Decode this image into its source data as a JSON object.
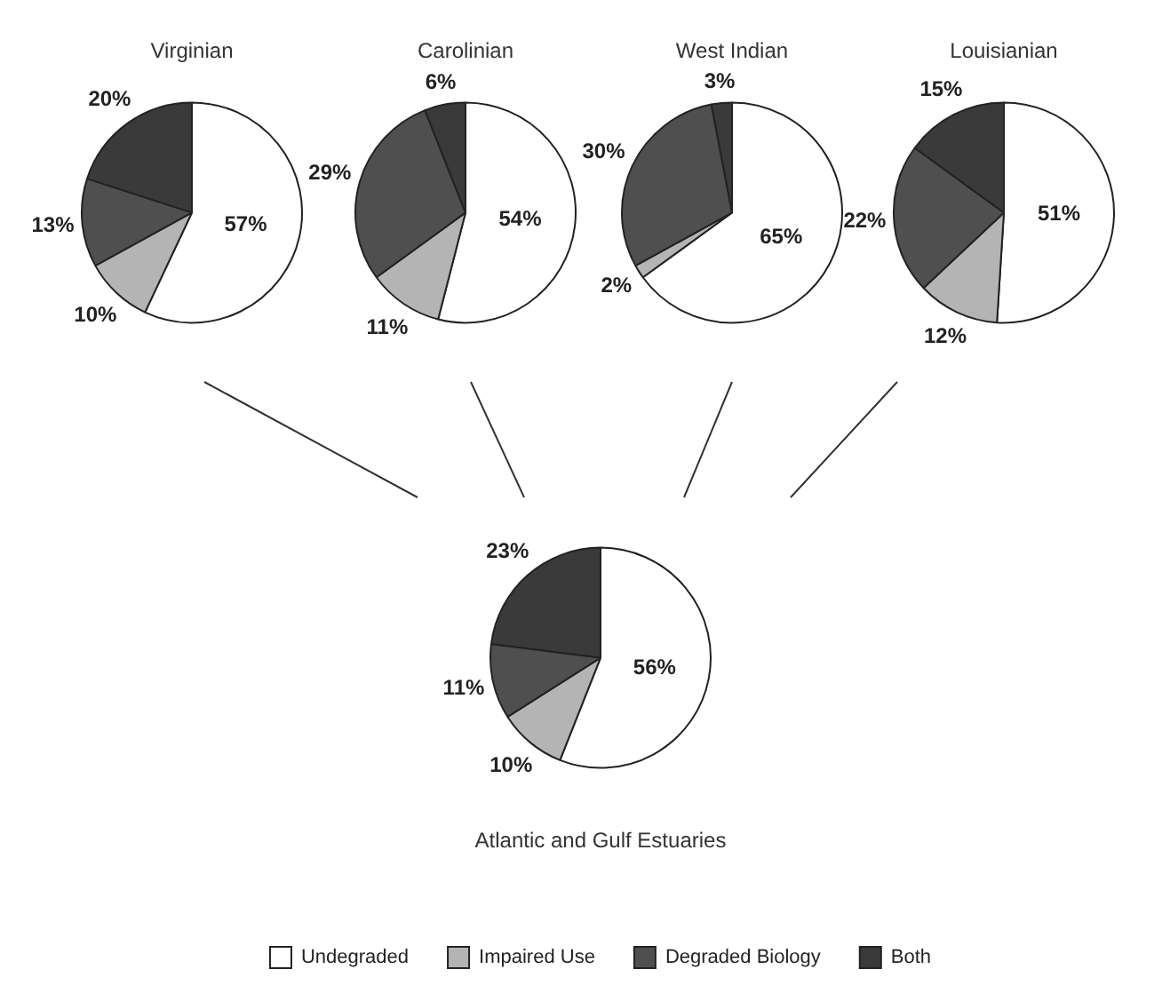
{
  "chart_data": [
    {
      "type": "pie",
      "title": "Virginian",
      "categories": [
        null,
        null,
        null,
        null
      ],
      "values": [
        57,
        10,
        13,
        20
      ],
      "colors": [
        "#ffffff",
        "#b4b4b4",
        "#4f4f4f",
        "#3a3a3a"
      ],
      "value_labels": [
        "57%",
        "10%",
        "13%",
        "20%"
      ],
      "legend": false
    },
    {
      "type": "pie",
      "title": "Carolinian",
      "categories": [
        null,
        null,
        null,
        null
      ],
      "values": [
        54,
        11,
        29,
        6
      ],
      "colors": [
        "#ffffff",
        "#b4b4b4",
        "#4f4f4f",
        "#3a3a3a"
      ],
      "value_labels": [
        "54%",
        "11%",
        "29%",
        "6%"
      ],
      "legend": false
    },
    {
      "type": "pie",
      "title": "West Indian",
      "categories": [
        null,
        null,
        null,
        null
      ],
      "values": [
        65,
        2,
        30,
        3
      ],
      "colors": [
        "#ffffff",
        "#b4b4b4",
        "#4f4f4f",
        "#3a3a3a"
      ],
      "value_labels": [
        "65%",
        "2%",
        "30%",
        "3%"
      ],
      "legend": false
    },
    {
      "type": "pie",
      "title": "Louisianian",
      "categories": [
        null,
        null,
        null,
        null
      ],
      "values": [
        51,
        12,
        22,
        15
      ],
      "colors": [
        "#ffffff",
        "#b4b4b4",
        "#4f4f4f",
        "#3a3a3a"
      ],
      "value_labels": [
        "51%",
        "12%",
        "22%",
        "15%"
      ],
      "legend": false
    },
    {
      "type": "pie",
      "title": "Atlantic and Gulf Estuaries",
      "categories": [
        "Undegraded",
        "Impaired Use",
        "Degraded Biology",
        "Both"
      ],
      "values": [
        56,
        10,
        11,
        23
      ],
      "colors": [
        "#ffffff",
        "#b4b4b4",
        "#4f4f4f",
        "#3a3a3a"
      ],
      "value_labels": [
        "56%",
        "10%",
        "11%",
        "23%"
      ],
      "legend": "bottom"
    }
  ]
}
